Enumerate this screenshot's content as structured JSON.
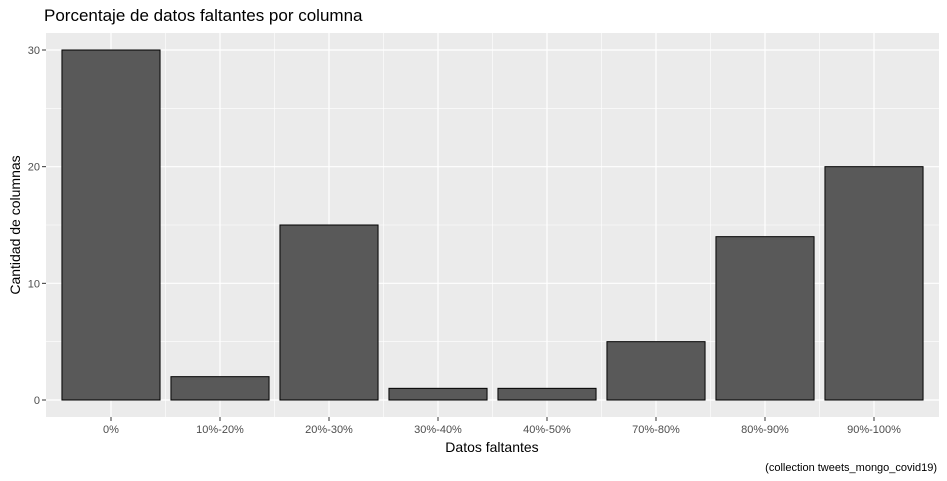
{
  "chart_data": {
    "type": "bar",
    "title": "Porcentaje de datos faltantes por columna",
    "xlabel": "Datos faltantes",
    "ylabel": "Cantidad de columnas",
    "caption": "(collection tweets_mongo_covid19)",
    "categories": [
      "0%",
      "10%-20%",
      "20%-30%",
      "30%-40%",
      "40%-50%",
      "70%-80%",
      "80%-90%",
      "90%-100%"
    ],
    "values": [
      30,
      2,
      15,
      1,
      1,
      5,
      14,
      20
    ],
    "ylim": [
      0,
      30
    ],
    "yticks": [
      0,
      10,
      20,
      30
    ],
    "grid": true,
    "colors": {
      "panel": "#ebebeb",
      "grid_major": "#ffffff",
      "bar_fill": "#595959",
      "bar_stroke": "#000000"
    }
  }
}
